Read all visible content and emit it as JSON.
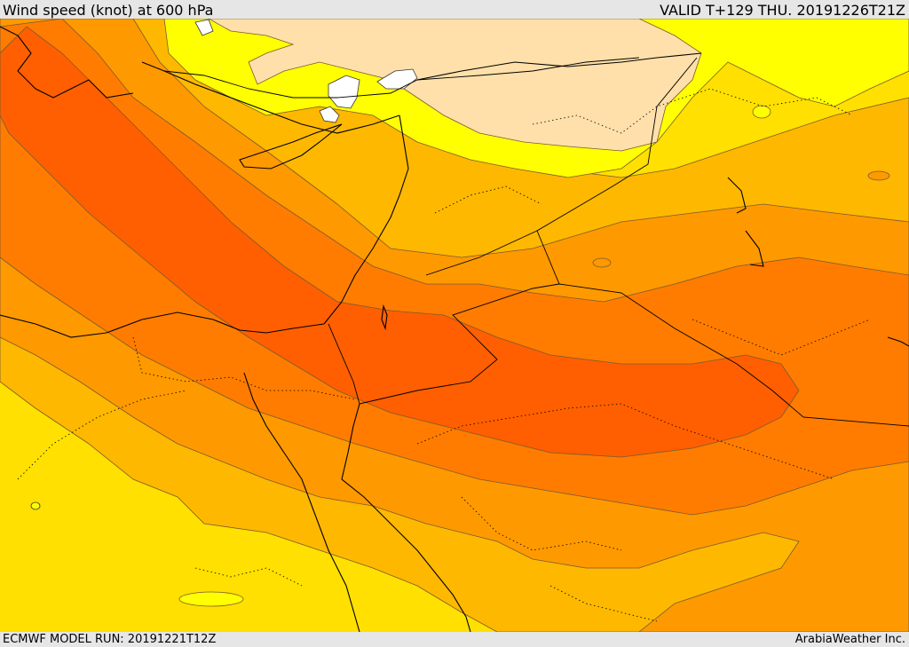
{
  "header": {
    "title": "Wind speed (knot) at 600 hPa",
    "valid_time": "VALID T+129 THU. 20191226T21Z"
  },
  "footer": {
    "model_run": "ECMWF MODEL RUN: 20191221T12Z",
    "credit": "ArabiaWeather Inc."
  },
  "colors": {
    "lightest": "#ffe0aa",
    "light_yellow": "#ffff00",
    "yellow": "#ffe000",
    "gold": "#ffb800",
    "amber": "#ff9900",
    "orange": "#ff7c00",
    "dark_orange": "#ff5f00",
    "white": "#ffffff"
  }
}
